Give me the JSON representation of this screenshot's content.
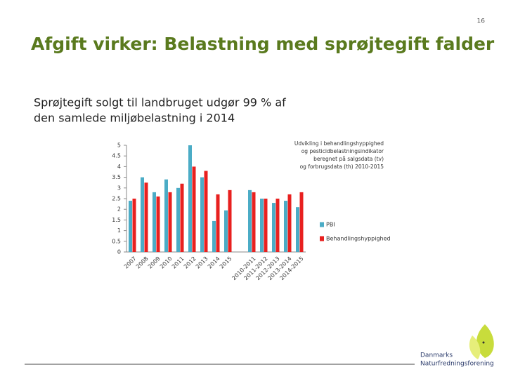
{
  "slide": {
    "page_number": "16",
    "title": "Afgift virker: Belastning med sprøjtegift falder",
    "subtitle_lines": [
      "Sprøjtegift solgt til landbruget udgør 99 % af",
      "den samlede miljøbelastning i 2014"
    ],
    "logo_lines": [
      "Danmarks",
      "Naturfredningsforening"
    ]
  },
  "chart_data": {
    "type": "bar",
    "annotation_lines": [
      "Udvikling i behandlingshyppighed",
      "og pesticidbelastningsindikator",
      "beregnet på salgsdata (tv)",
      "og forbrugsdata (th) 2010-2015"
    ],
    "categories": [
      "2007",
      "2008",
      "2009",
      "2010",
      "2011",
      "2012",
      "2013",
      "2014",
      "2015",
      null,
      "2010-2011",
      "2011-2012",
      "2012-2013",
      "2013-2014",
      "2014-2015"
    ],
    "series": [
      {
        "name": "PBI",
        "color": "#4bacc6",
        "values": [
          2.4,
          3.5,
          2.8,
          3.4,
          3.0,
          5.0,
          3.5,
          1.45,
          1.95,
          null,
          2.9,
          2.5,
          2.3,
          2.4,
          2.1
        ]
      },
      {
        "name": "Behandlingshyppighed",
        "color": "#e8201f",
        "values": [
          2.5,
          3.25,
          2.6,
          2.8,
          3.2,
          4.0,
          3.8,
          2.7,
          2.9,
          null,
          2.8,
          2.5,
          2.5,
          2.7,
          2.8
        ]
      }
    ],
    "ylim": [
      0,
      5
    ],
    "yticks": [
      0,
      0.5,
      1,
      1.5,
      2,
      2.5,
      3,
      3.5,
      4,
      4.5,
      5
    ],
    "grid": false,
    "legend": "right"
  }
}
